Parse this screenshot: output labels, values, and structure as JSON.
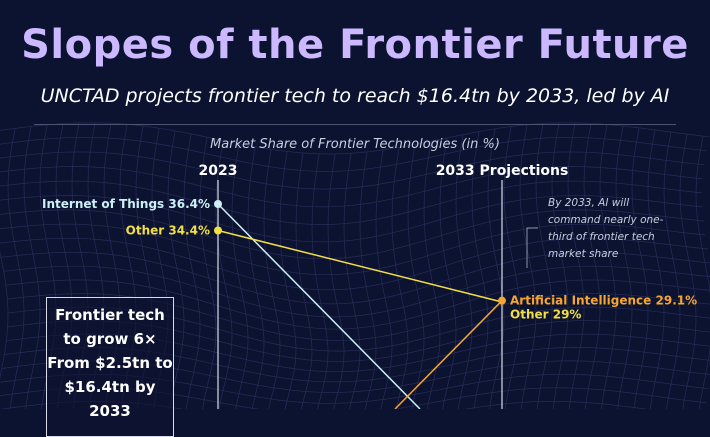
{
  "header": {
    "title": "Slopes of the Frontier Future",
    "subtitle": "UNCTAD projects frontier tech to reach $16.4tn by 2033, led by AI"
  },
  "callout": {
    "lines": [
      "By 2033, AI will",
      "command nearly one-",
      "third of frontier tech",
      "market share"
    ]
  },
  "fact_box": {
    "lines": [
      "Frontier tech",
      "to grow 6×",
      "From $2.5tn to",
      "$16.4tn by",
      "2033"
    ]
  },
  "colors": {
    "background": "#0c1330",
    "title": "#cbb8ff",
    "iot": "#cdeff7",
    "other": "#f2de45",
    "ai": "#f7a531",
    "axis": "#d8dcea"
  },
  "chart_data": {
    "type": "slope",
    "title": "Market Share of Frontier Technologies (in %)",
    "columns": [
      "2023",
      "2033 Projections"
    ],
    "y_unit": "%",
    "series": [
      {
        "name": "Internet of Things",
        "values": [
          36.4,
          null
        ],
        "labels": [
          "Internet of Things 36.4%",
          ""
        ],
        "color": "#cdeff7"
      },
      {
        "name": "Other",
        "values": [
          34.4,
          29
        ],
        "labels": [
          "Other 34.4%",
          "Other 29%"
        ],
        "color": "#f2de45"
      },
      {
        "name": "Artificial Intelligence",
        "values": [
          null,
          29.1
        ],
        "labels": [
          "",
          "Artificial Intelligence 29.1%"
        ],
        "color": "#f7a531"
      }
    ]
  }
}
